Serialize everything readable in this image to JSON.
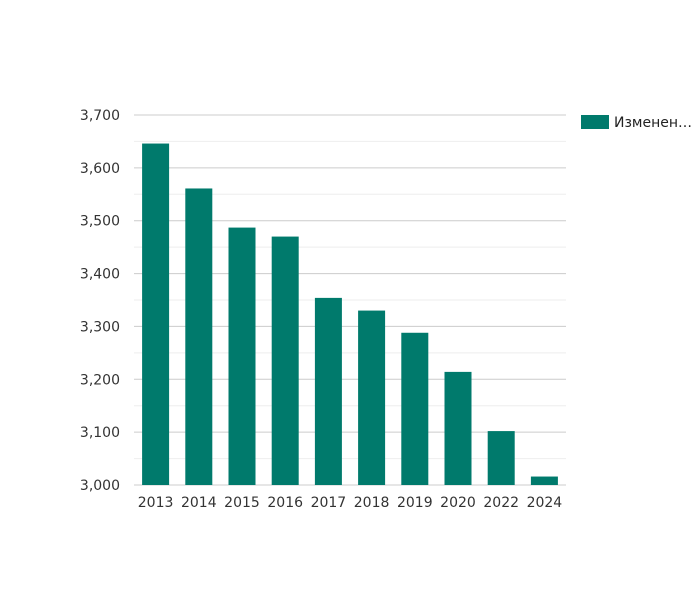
{
  "chart_data": {
    "type": "bar",
    "categories": [
      "2013",
      "2014",
      "2015",
      "2016",
      "2017",
      "2018",
      "2019",
      "2020",
      "2022",
      "2024"
    ],
    "values": [
      3646,
      3561,
      3487,
      3470,
      3354,
      3330,
      3288,
      3214,
      3102,
      3016
    ],
    "series": [
      {
        "name": "Изменен…",
        "color": "#007a6c"
      }
    ],
    "yticks": [
      "3,000",
      "3,100",
      "3,200",
      "3,300",
      "3,400",
      "3,500",
      "3,600",
      "3,700"
    ],
    "ylim": [
      3000,
      3700
    ],
    "grid": true,
    "legend_position": "top-right",
    "bar_color": "#007a6c"
  }
}
